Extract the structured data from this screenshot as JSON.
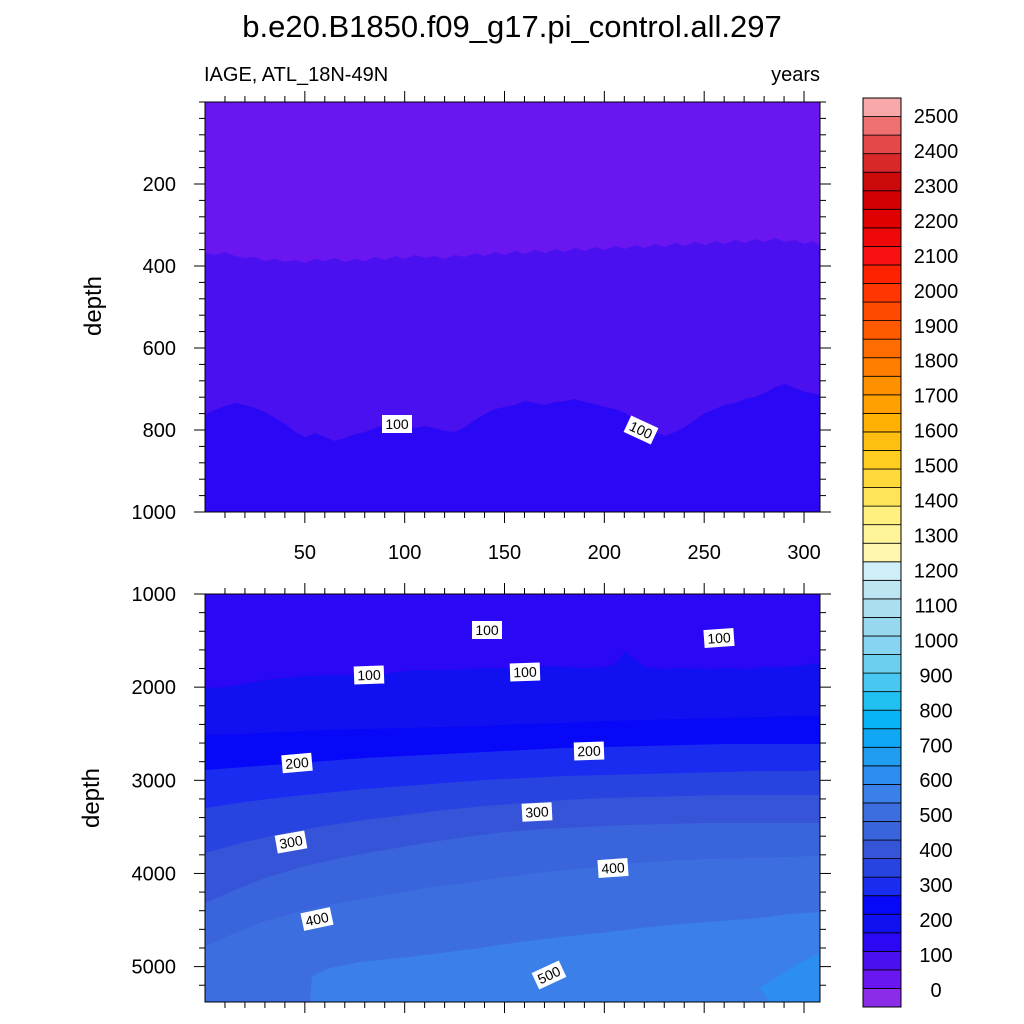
{
  "chart_data": {
    "type": "filled-contour",
    "title": "b.e20.B1850.f09_g17.pi_control.all.297",
    "variable_label": "IAGE, ATL_18N-49N",
    "units_label": "years",
    "ylabel": "depth",
    "x_range": [
      0,
      308
    ],
    "x_ticks": [
      50,
      100,
      150,
      200,
      250,
      300
    ],
    "panels": [
      {
        "name": "upper",
        "ylim": [
          0,
          1000
        ],
        "y_ticks": [
          200,
          400,
          600,
          800,
          1000
        ],
        "x_tick_labels_shown": true,
        "contour_labels": [
          {
            "text": "100",
            "x": 97,
            "depth": 780,
            "angle": 0
          },
          {
            "text": "100",
            "x": 220,
            "depth": 780,
            "angle": 25
          }
        ]
      },
      {
        "name": "lower",
        "ylim": [
          1000,
          5380
        ],
        "y_ticks": [
          1000,
          2000,
          3000,
          4000,
          5000
        ],
        "x_tick_labels_shown": false,
        "contour_labels": [
          {
            "text": "100",
            "x": 142,
            "depth": 1380,
            "angle": 0
          },
          {
            "text": "100",
            "x": 258,
            "depth": 1470,
            "angle": -4
          },
          {
            "text": "100",
            "x": 82,
            "depth": 1870,
            "angle": -2
          },
          {
            "text": "100",
            "x": 162,
            "depth": 1830,
            "angle": -2
          },
          {
            "text": "200",
            "x": 46,
            "depth": 2830,
            "angle": -5
          },
          {
            "text": "200",
            "x": 193,
            "depth": 2700,
            "angle": -2
          },
          {
            "text": "300",
            "x": 43,
            "depth": 3670,
            "angle": -10
          },
          {
            "text": "300",
            "x": 167,
            "depth": 3330,
            "angle": -3
          },
          {
            "text": "400",
            "x": 56,
            "depth": 4500,
            "angle": -12
          },
          {
            "text": "400",
            "x": 205,
            "depth": 3940,
            "angle": -4
          },
          {
            "text": "500",
            "x": 172,
            "depth": 5130,
            "angle": -25
          }
        ]
      }
    ],
    "colorbar": {
      "tick_labels": [
        "0",
        "100",
        "200",
        "300",
        "400",
        "500",
        "600",
        "700",
        "800",
        "900",
        "1000",
        "1100",
        "1200",
        "1300",
        "1400",
        "1500",
        "1600",
        "1700",
        "1800",
        "1900",
        "2000",
        "2100",
        "2200",
        "2300",
        "2400",
        "2500"
      ],
      "colors": [
        "#8a2ce8",
        "#6a16f0",
        "#4a10f0",
        "#2a08f5",
        "#1010f0",
        "#0808f8",
        "#1a2cf0",
        "#2844e0",
        "#3654d8",
        "#3a64dc",
        "#3c6ee0",
        "#3a80e8",
        "#2c8ef0",
        "#209cf0",
        "#10a8f5",
        "#08b4f5",
        "#20c0f0",
        "#48c8f0",
        "#6ccff0",
        "#86d4ef",
        "#98d8ef",
        "#aadff0",
        "#bde6f2",
        "#cfeef8",
        "#fff7b0",
        "#fff49a",
        "#fff080",
        "#ffe45a",
        "#ffd83a",
        "#ffcc20",
        "#ffbf10",
        "#ffb000",
        "#ffa000",
        "#ff9000",
        "#ff7e00",
        "#ff6c00",
        "#ff5a00",
        "#ff4800",
        "#ff3600",
        "#ff2200",
        "#f81010",
        "#ee0808",
        "#e00000",
        "#d20000",
        "#cc0a0a",
        "#d82828",
        "#e44848",
        "#ee7070",
        "#f8a8a8"
      ]
    },
    "regions_upper": [
      {
        "range": "0-50",
        "color": "#6a16f0"
      },
      {
        "range": "50-100",
        "color": "#4a10f0"
      },
      {
        "range": "100-150",
        "color": "#2a08f5"
      }
    ],
    "regions_lower": [
      {
        "range": "100-150",
        "color": "#2a08f5"
      },
      {
        "range": "150-200",
        "color": "#1010f0"
      },
      {
        "range": "200-250",
        "color": "#0808f8"
      },
      {
        "range": "250-300",
        "color": "#1a2cf0"
      },
      {
        "range": "300-350",
        "color": "#2844e0"
      },
      {
        "range": "350-400",
        "color": "#3654d8"
      },
      {
        "range": "400-450",
        "color": "#3a64dc"
      },
      {
        "range": "450-500",
        "color": "#3c6ee0"
      },
      {
        "range": "500-550",
        "color": "#3a80e8"
      },
      {
        "range": "550-600",
        "color": "#2c8ef0"
      }
    ]
  }
}
